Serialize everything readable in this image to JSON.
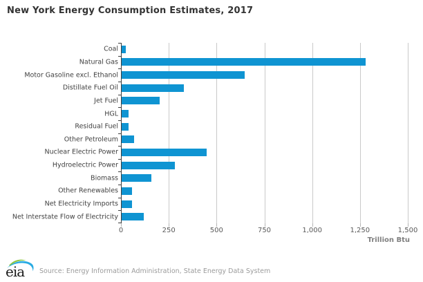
{
  "title": "New York Energy Consumption Estimates, 2017",
  "chart_data": {
    "type": "bar",
    "orientation": "horizontal",
    "title": "New York Energy Consumption Estimates, 2017",
    "categories": [
      "Coal",
      "Natural Gas",
      "Motor Gasoline excl. Ethanol",
      "Distillate Fuel Oil",
      "Jet Fuel",
      "HGL",
      "Residual Fuel",
      "Other Petroleum",
      "Nuclear Electric Power",
      "Hydroelectric Power",
      "Biomass",
      "Other Renewables",
      "Net Electricity Imports",
      "Net Interstate Flow of Electricity"
    ],
    "values": [
      20,
      1275,
      645,
      325,
      200,
      35,
      35,
      65,
      445,
      280,
      155,
      55,
      55,
      115
    ],
    "xlabel": "Trillion Btu",
    "ylabel": "",
    "xlim": [
      0,
      1500
    ],
    "x_ticks": [
      0,
      250,
      500,
      750,
      1000,
      1250,
      1500
    ],
    "x_tick_labels": [
      "0",
      "250",
      "500",
      "750",
      "1,000",
      "1,250",
      "1,500"
    ],
    "grid": "vertical-only",
    "legend": "none",
    "bar_color": "#0f94d2",
    "gridline_color": "#c9c9c9",
    "axis_color": "#3c3c3c"
  },
  "footer": {
    "logo_text": "eia",
    "source_text": "Source: Energy Information Administration, State Energy Data System"
  }
}
